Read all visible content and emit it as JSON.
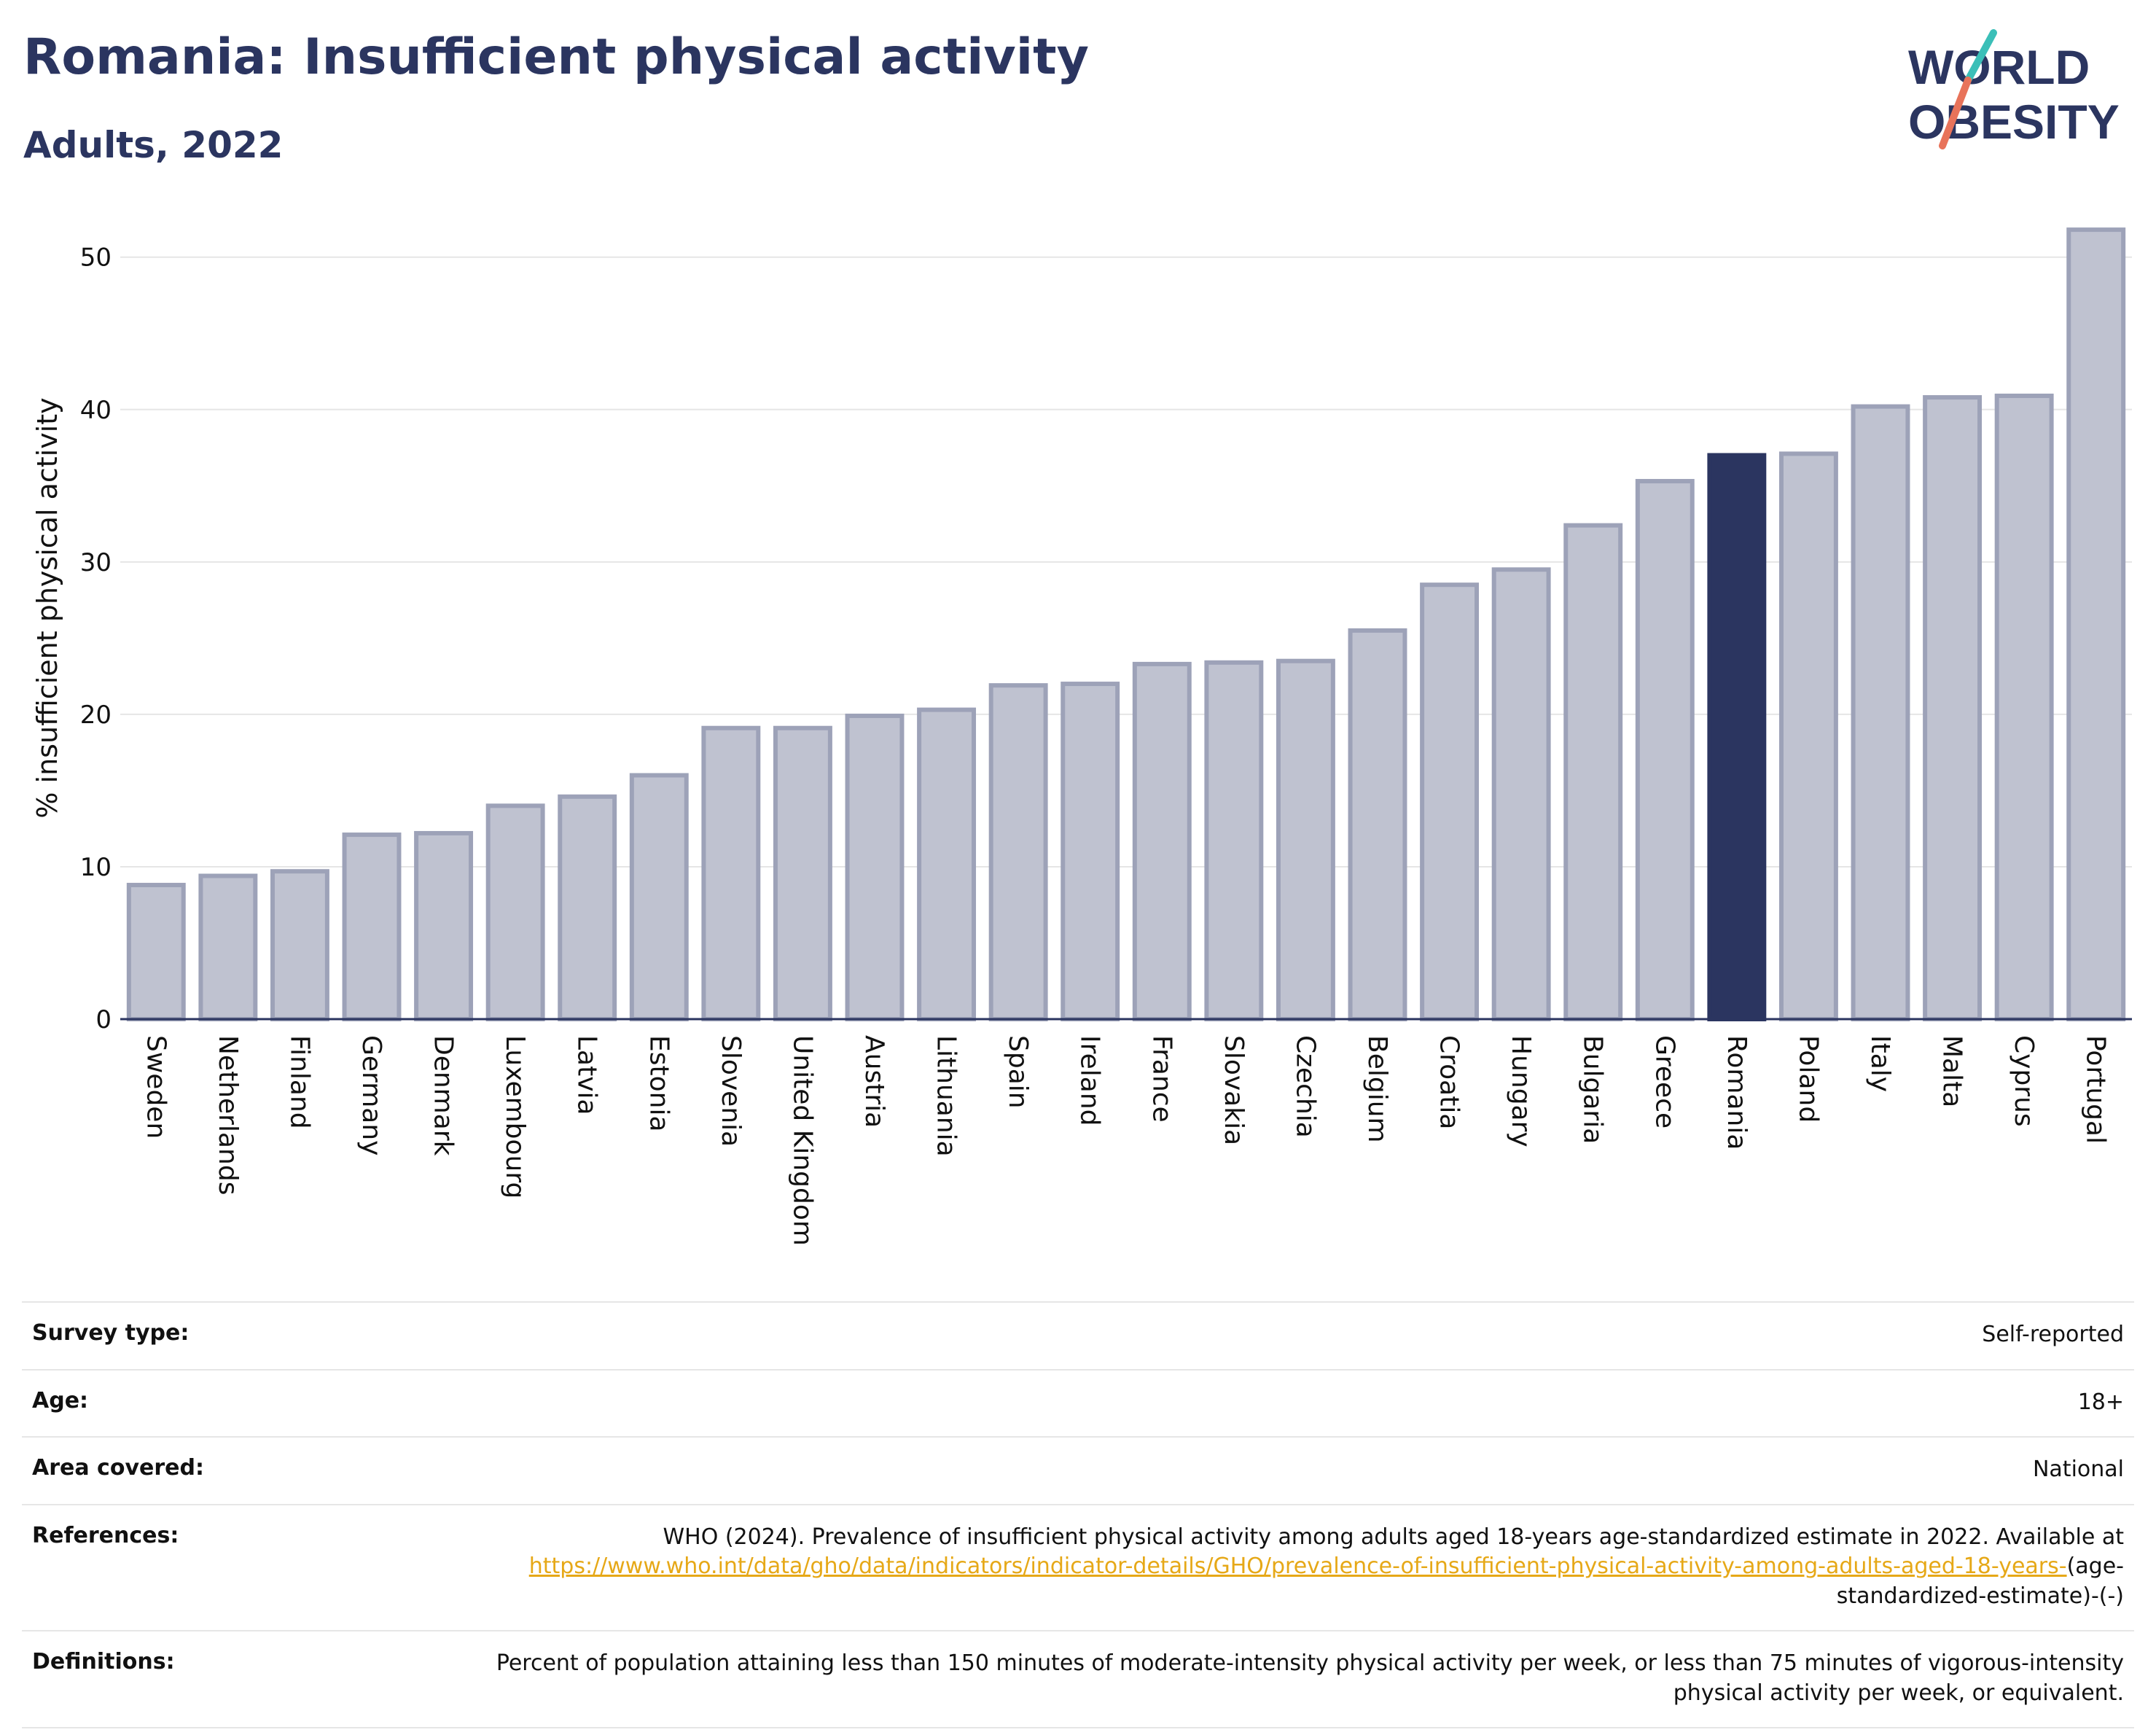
{
  "header": {
    "title": "Romania: Insufficient physical activity",
    "subtitle": "Adults, 2022"
  },
  "logo": {
    "line1": "WORLD",
    "line2": "OBESITY",
    "accent_colors": [
      "#3bbfb8",
      "#e8735a"
    ]
  },
  "colors": {
    "bar": "#bfc2d0",
    "bar_border": "#9da2b8",
    "highlight": "#2b3560",
    "grid": "#e6e6e6",
    "axis": "#2b3560",
    "link": "#e6a817"
  },
  "chart_data": {
    "type": "bar",
    "ylabel": "% insufficient physical activity",
    "ylim": [
      0,
      53
    ],
    "yticks": [
      0,
      10,
      20,
      30,
      40,
      50
    ],
    "grid": true,
    "highlight": "Romania",
    "categories": [
      "Sweden",
      "Netherlands",
      "Finland",
      "Germany",
      "Denmark",
      "Luxembourg",
      "Latvia",
      "Estonia",
      "Slovenia",
      "United Kingdom",
      "Austria",
      "Lithuania",
      "Spain",
      "Ireland",
      "France",
      "Slovakia",
      "Czechia",
      "Belgium",
      "Croatia",
      "Hungary",
      "Bulgaria",
      "Greece",
      "Romania",
      "Poland",
      "Italy",
      "Malta",
      "Cyprus",
      "Portugal"
    ],
    "values": [
      8.8,
      9.4,
      9.7,
      12.1,
      12.2,
      14.0,
      14.6,
      16.0,
      19.1,
      19.1,
      19.9,
      20.3,
      21.9,
      22.0,
      23.3,
      23.4,
      23.5,
      25.5,
      28.5,
      29.5,
      32.4,
      35.3,
      37.0,
      37.1,
      40.2,
      40.8,
      40.9,
      51.8
    ]
  },
  "info": {
    "survey_type_label": "Survey type:",
    "survey_type_value": "Self-reported",
    "age_label": "Age:",
    "age_value": "18+",
    "area_label": "Area covered:",
    "area_value": "National",
    "references_label": "References:",
    "references_text": "WHO (2024). Prevalence of insufficient physical activity among adults aged 18-years age-standardized estimate in 2022. Available at",
    "references_link": "https://www.who.int/data/gho/data/indicators/indicator-details/GHO/prevalence-of-insufficient-physical-activity-among-adults-aged-18-years-",
    "references_suffix": "(age-standardized-estimate)-(-)",
    "definitions_label": "Definitions:",
    "definitions_value": "Percent of population attaining less than 150 minutes of moderate-intensity physical activity per week, or less than 75 minutes of vigorous-intensity physical activity per week, or equivalent."
  }
}
